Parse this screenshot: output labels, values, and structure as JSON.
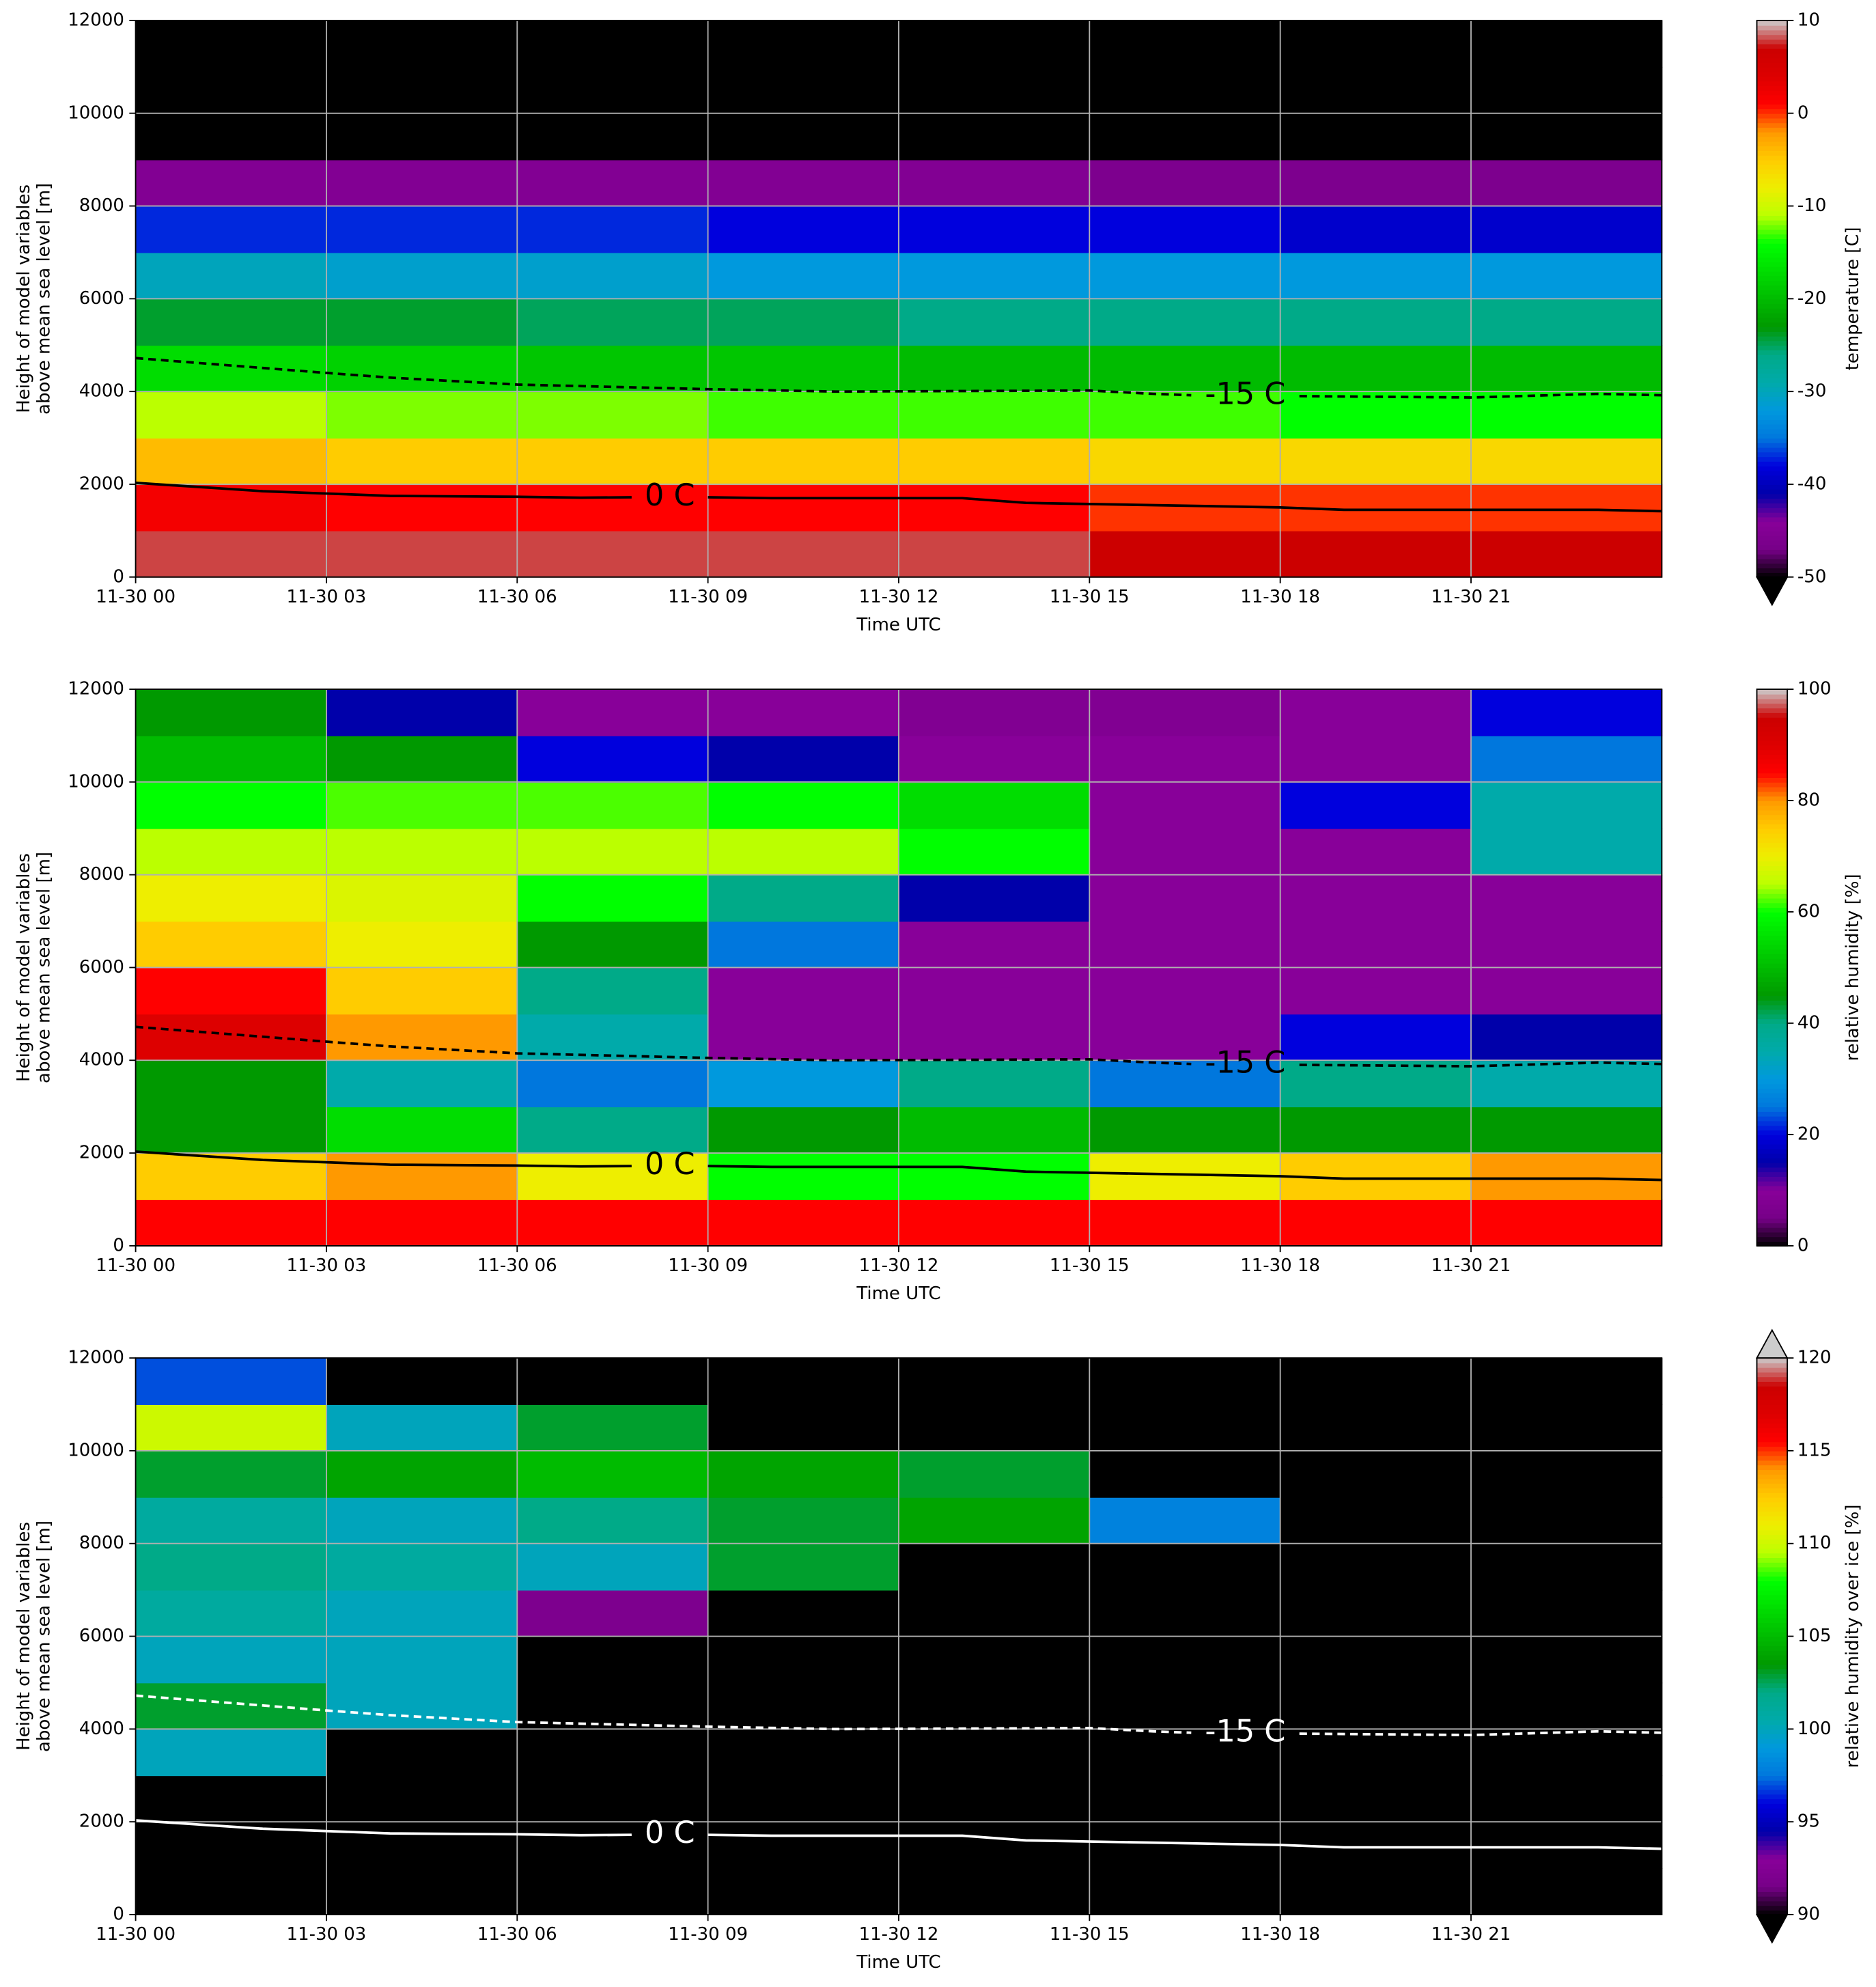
{
  "chart_data": [
    {
      "type": "heatmap",
      "xlabel": "Time UTC",
      "ylabel": [
        "Height of model variables",
        "above mean sea level [m]"
      ],
      "xlim": [
        0,
        24
      ],
      "xticks": [
        {
          "value": 0,
          "label": "11-30 00"
        },
        {
          "value": 3,
          "label": "11-30 03"
        },
        {
          "value": 6,
          "label": "11-30 06"
        },
        {
          "value": 9,
          "label": "11-30 09"
        },
        {
          "value": 12,
          "label": "11-30 12"
        },
        {
          "value": 15,
          "label": "11-30 15"
        },
        {
          "value": 18,
          "label": "11-30 18"
        },
        {
          "value": 21,
          "label": "11-30 21"
        }
      ],
      "ylim": [
        0,
        12000
      ],
      "yticks": [
        0,
        2000,
        4000,
        6000,
        8000,
        10000,
        12000
      ],
      "grid": true,
      "x": [
        1.5,
        4.5,
        7.5,
        10.5,
        13.5,
        16.5,
        19.5,
        22.5
      ],
      "y": [
        500,
        1500,
        2500,
        3500,
        4500,
        5500,
        6500,
        7500,
        8500,
        9500,
        10500,
        11500
      ],
      "z": [
        [
          8,
          8,
          8,
          8,
          8,
          7,
          7,
          7
        ],
        [
          2,
          1,
          1,
          1,
          1,
          0,
          0,
          0
        ],
        [
          -4,
          -5,
          -5,
          -5,
          -5,
          -6,
          -6,
          -6
        ],
        [
          -11,
          -12,
          -12,
          -13,
          -13,
          -13,
          -14,
          -14
        ],
        [
          -17,
          -18,
          -19,
          -19,
          -20,
          -20,
          -20,
          -20
        ],
        [
          -24,
          -24,
          -25,
          -25,
          -26,
          -26,
          -26,
          -26
        ],
        [
          -30,
          -31,
          -31,
          -32,
          -32,
          -32,
          -32,
          -32
        ],
        [
          -37,
          -37,
          -37,
          -38,
          -38,
          -38,
          -39,
          -39
        ],
        [
          -45,
          -45,
          -45,
          -45,
          -45,
          -46,
          -46,
          -46
        ],
        [
          -55,
          -55,
          -55,
          -55,
          -55,
          -55,
          -55,
          -55
        ],
        [
          -55,
          -55,
          -55,
          -55,
          -55,
          -55,
          -55,
          -55
        ],
        [
          -55,
          -55,
          -55,
          -55,
          -55,
          -55,
          -55,
          -55
        ]
      ],
      "clim": [
        -50,
        10
      ],
      "extend": "min",
      "cbar_label": "temperature [C]",
      "cbar_ticks": [
        -50,
        -40,
        -30,
        -20,
        -10,
        0,
        10
      ],
      "colormap": [
        "#000000",
        "#770088",
        "#880099",
        "#0000aa",
        "#0000dd",
        "#0077dd",
        "#0099dd",
        "#00aaaa",
        "#00aa88",
        "#009900",
        "#00bb00",
        "#00dd00",
        "#00ff00",
        "#bbff00",
        "#eeee00",
        "#ffcc00",
        "#ff9900",
        "#ff0000",
        "#dd0000",
        "#cc0000",
        "#cccccc"
      ],
      "contours": [
        {
          "name": "0 C",
          "color": "#000000",
          "style": "solid",
          "x": [
            0,
            2,
            4,
            6,
            7,
            7.8,
            8.4,
            9,
            10,
            13,
            14,
            18,
            19,
            23,
            24
          ],
          "y": [
            2030,
            1850,
            1750,
            1730,
            1710,
            1720,
            null,
            1720,
            1700,
            1700,
            1600,
            1500,
            1450,
            1450,
            1420
          ]
        },
        {
          "name": "-15 C",
          "color": "#000000",
          "style": "dashed",
          "x": [
            0,
            3,
            4,
            6,
            9,
            11,
            15,
            16,
            16.6,
            17.45,
            18.3,
            21,
            23,
            24
          ],
          "y": [
            4720,
            4400,
            4300,
            4150,
            4050,
            4000,
            4020,
            3950,
            3920,
            null,
            3900,
            3870,
            3950,
            3920
          ]
        }
      ]
    },
    {
      "type": "heatmap",
      "xlabel": "Time UTC",
      "ylabel": [
        "Height of model variables",
        "above mean sea level [m]"
      ],
      "xlim": [
        0,
        24
      ],
      "xticks": [
        {
          "value": 0,
          "label": "11-30 00"
        },
        {
          "value": 3,
          "label": "11-30 03"
        },
        {
          "value": 6,
          "label": "11-30 06"
        },
        {
          "value": 9,
          "label": "11-30 09"
        },
        {
          "value": 12,
          "label": "11-30 12"
        },
        {
          "value": 15,
          "label": "11-30 15"
        },
        {
          "value": 18,
          "label": "11-30 18"
        },
        {
          "value": 21,
          "label": "11-30 21"
        }
      ],
      "ylim": [
        0,
        12000
      ],
      "yticks": [
        0,
        2000,
        4000,
        6000,
        8000,
        10000,
        12000
      ],
      "grid": true,
      "x": [
        1.5,
        4.5,
        7.5,
        10.5,
        13.5,
        16.5,
        19.5,
        22.5
      ],
      "y": [
        500,
        1500,
        2500,
        3500,
        4500,
        5500,
        6500,
        7500,
        8500,
        9500,
        10500,
        11500
      ],
      "z": [
        [
          85,
          85,
          85,
          85,
          85,
          85,
          85,
          85
        ],
        [
          75,
          80,
          70,
          60,
          60,
          70,
          75,
          80
        ],
        [
          45,
          55,
          40,
          45,
          50,
          45,
          45,
          45
        ],
        [
          45,
          35,
          25,
          30,
          40,
          25,
          40,
          35
        ],
        [
          90,
          80,
          35,
          10,
          10,
          10,
          20,
          15
        ],
        [
          85,
          75,
          40,
          10,
          10,
          10,
          10,
          10
        ],
        [
          75,
          70,
          45,
          25,
          10,
          10,
          10,
          10
        ],
        [
          70,
          68,
          60,
          40,
          15,
          10,
          10,
          10
        ],
        [
          65,
          65,
          65,
          65,
          60,
          10,
          10,
          35
        ],
        [
          60,
          62,
          62,
          60,
          55,
          10,
          20,
          35
        ],
        [
          50,
          45,
          20,
          15,
          10,
          10,
          10,
          25
        ],
        [
          45,
          15,
          10,
          10,
          8,
          8,
          10,
          20
        ]
      ],
      "clim": [
        0,
        100
      ],
      "extend": "neither",
      "cbar_label": "relative humidity [%]",
      "cbar_ticks": [
        0,
        20,
        40,
        60,
        80,
        100
      ],
      "colormap": [
        "#000000",
        "#770088",
        "#880099",
        "#0000aa",
        "#0000dd",
        "#0077dd",
        "#0099dd",
        "#00aaaa",
        "#00aa88",
        "#009900",
        "#00bb00",
        "#00dd00",
        "#00ff00",
        "#bbff00",
        "#eeee00",
        "#ffcc00",
        "#ff9900",
        "#ff0000",
        "#dd0000",
        "#cc0000",
        "#cccccc"
      ],
      "contours": [
        {
          "name": "0 C",
          "color": "#000000",
          "style": "solid",
          "x": [
            0,
            2,
            4,
            6,
            7,
            7.8,
            8.4,
            9,
            10,
            13,
            14,
            18,
            19,
            23,
            24
          ],
          "y": [
            2030,
            1850,
            1750,
            1730,
            1710,
            1720,
            null,
            1720,
            1700,
            1700,
            1600,
            1500,
            1450,
            1450,
            1420
          ]
        },
        {
          "name": "-15 C",
          "color": "#000000",
          "style": "dashed",
          "x": [
            0,
            3,
            4,
            6,
            9,
            11,
            15,
            16,
            16.6,
            17.45,
            18.3,
            21,
            23,
            24
          ],
          "y": [
            4720,
            4400,
            4300,
            4150,
            4050,
            4000,
            4020,
            3950,
            3920,
            null,
            3900,
            3870,
            3950,
            3920
          ]
        }
      ]
    },
    {
      "type": "heatmap",
      "xlabel": "Time UTC",
      "ylabel": [
        "Height of model variables",
        "above mean sea level [m]"
      ],
      "xlim": [
        0,
        24
      ],
      "xticks": [
        {
          "value": 0,
          "label": "11-30 00"
        },
        {
          "value": 3,
          "label": "11-30 03"
        },
        {
          "value": 6,
          "label": "11-30 06"
        },
        {
          "value": 9,
          "label": "11-30 09"
        },
        {
          "value": 12,
          "label": "11-30 12"
        },
        {
          "value": 15,
          "label": "11-30 15"
        },
        {
          "value": 18,
          "label": "11-30 18"
        },
        {
          "value": 21,
          "label": "11-30 21"
        }
      ],
      "ylim": [
        0,
        12000
      ],
      "yticks": [
        0,
        2000,
        4000,
        6000,
        8000,
        10000,
        12000
      ],
      "grid": true,
      "x": [
        1.5,
        4.5,
        7.5,
        10.5,
        13.5,
        16.5,
        19.5,
        22.5
      ],
      "y": [
        500,
        1500,
        2500,
        3500,
        4500,
        5500,
        6500,
        7500,
        8500,
        9500,
        10500,
        11500
      ],
      "z": [
        [
          80,
          80,
          80,
          80,
          80,
          80,
          80,
          80
        ],
        [
          80,
          80,
          80,
          80,
          80,
          80,
          80,
          80
        ],
        [
          80,
          80,
          80,
          80,
          80,
          80,
          80,
          80
        ],
        [
          100,
          80,
          80,
          80,
          80,
          80,
          80,
          80
        ],
        [
          103,
          100,
          80,
          80,
          80,
          80,
          80,
          80
        ],
        [
          100,
          100,
          80,
          80,
          80,
          80,
          80,
          80
        ],
        [
          101,
          100,
          92,
          80,
          80,
          80,
          80,
          80
        ],
        [
          102,
          101,
          100,
          103,
          80,
          80,
          80,
          80
        ],
        [
          101,
          100,
          102,
          103,
          104,
          98,
          80,
          80
        ],
        [
          103,
          104,
          105,
          104,
          103,
          80,
          80,
          80
        ],
        [
          110,
          100,
          103,
          80,
          80,
          80,
          80,
          80
        ],
        [
          97,
          80,
          80,
          80,
          80,
          80,
          80,
          80
        ]
      ],
      "clim": [
        90,
        120
      ],
      "extend": "both",
      "cbar_label": "relative humidity over ice [%]",
      "cbar_ticks": [
        90,
        95,
        100,
        105,
        110,
        115,
        120
      ],
      "colormap": [
        "#000000",
        "#770088",
        "#880099",
        "#0000aa",
        "#0000dd",
        "#0077dd",
        "#0099dd",
        "#00aaaa",
        "#00aa88",
        "#009900",
        "#00bb00",
        "#00dd00",
        "#00ff00",
        "#bbff00",
        "#eeee00",
        "#ffcc00",
        "#ff9900",
        "#ff0000",
        "#dd0000",
        "#cc0000",
        "#cccccc"
      ],
      "contours": [
        {
          "name": "0 C",
          "color": "#ffffff",
          "style": "solid",
          "x": [
            0,
            2,
            4,
            6,
            7,
            7.8,
            8.4,
            9,
            10,
            13,
            14,
            18,
            19,
            23,
            24
          ],
          "y": [
            2030,
            1850,
            1750,
            1730,
            1710,
            1720,
            null,
            1720,
            1700,
            1700,
            1600,
            1500,
            1450,
            1450,
            1420
          ]
        },
        {
          "name": "-15 C",
          "color": "#ffffff",
          "style": "dashed",
          "x": [
            0,
            3,
            4,
            6,
            9,
            11,
            15,
            16,
            16.6,
            17.45,
            18.3,
            21,
            23,
            24
          ],
          "y": [
            4720,
            4400,
            4300,
            4150,
            4050,
            4000,
            4020,
            3950,
            3920,
            null,
            3900,
            3870,
            3950,
            3920
          ]
        }
      ]
    }
  ]
}
